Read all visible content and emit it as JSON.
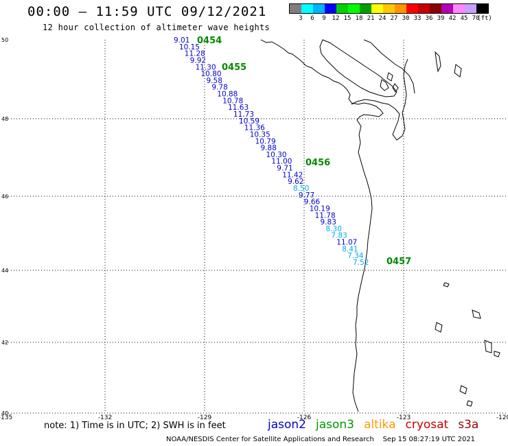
{
  "header": {
    "title": "00:00 – 11:59 UTC 09/12/2021",
    "subtitle": "12 hour collection of altimeter wave heights"
  },
  "legend": {
    "colors": [
      "#7f7f7f",
      "#00ffff",
      "#00b4ff",
      "#0000ff",
      "#00d200",
      "#00ff00",
      "#00a000",
      "#ffff00",
      "#ffc800",
      "#ff9600",
      "#ff0000",
      "#c80000",
      "#8b0000",
      "#b400b4",
      "#ff88ff",
      "#c8a0ff",
      "#000000"
    ],
    "labels": [
      "3",
      "6",
      "9",
      "12",
      "15",
      "18",
      "21",
      "24",
      "27",
      "30",
      "33",
      "36",
      "39",
      "42",
      "45",
      "70",
      "(ft)"
    ]
  },
  "axes": {
    "lon_ticks": [
      "-135",
      "-132",
      "-129",
      "-126",
      "-123",
      "-120"
    ],
    "lat_ticks": [
      "50",
      "48",
      "46",
      "44",
      "42",
      "40"
    ]
  },
  "time_labels": [
    "0454",
    "0455",
    "0456",
    "0457"
  ],
  "wave_heights": [
    {
      "v": "9.01",
      "c": "#0000cc"
    },
    {
      "v": "10.15",
      "c": "#0000cc"
    },
    {
      "v": "11.28",
      "c": "#0000cc"
    },
    {
      "v": "9.92",
      "c": "#0000cc"
    },
    {
      "v": "11.30",
      "c": "#0000cc"
    },
    {
      "v": "10.80",
      "c": "#0000cc"
    },
    {
      "v": "9.58",
      "c": "#0000cc"
    },
    {
      "v": "9.78",
      "c": "#0000cc"
    },
    {
      "v": "10.88",
      "c": "#0000cc"
    },
    {
      "v": "10.78",
      "c": "#0000cc"
    },
    {
      "v": "11.63",
      "c": "#0000cc"
    },
    {
      "v": "11.73",
      "c": "#0000cc"
    },
    {
      "v": "10.59",
      "c": "#0000cc"
    },
    {
      "v": "11.36",
      "c": "#0000cc"
    },
    {
      "v": "10.35",
      "c": "#0000cc"
    },
    {
      "v": "10.79",
      "c": "#0000cc"
    },
    {
      "v": "9.88",
      "c": "#0000cc"
    },
    {
      "v": "10.30",
      "c": "#0000cc"
    },
    {
      "v": "11.00",
      "c": "#0000cc"
    },
    {
      "v": "9.71",
      "c": "#0000cc"
    },
    {
      "v": "11.42",
      "c": "#0000cc"
    },
    {
      "v": "9.62",
      "c": "#0000cc"
    },
    {
      "v": "8.50",
      "c": "#00aaee"
    },
    {
      "v": "9.77",
      "c": "#0000cc"
    },
    {
      "v": "9.66",
      "c": "#0000cc"
    },
    {
      "v": "10.19",
      "c": "#0000cc"
    },
    {
      "v": "11.78",
      "c": "#0000cc"
    },
    {
      "v": "9.83",
      "c": "#0000cc"
    },
    {
      "v": "8.30",
      "c": "#00aaee"
    },
    {
      "v": "7.83",
      "c": "#00aaee"
    },
    {
      "v": "11.07",
      "c": "#0000cc"
    },
    {
      "v": "8.41",
      "c": "#00aaee"
    },
    {
      "v": "7.34",
      "c": "#00aaee"
    },
    {
      "v": "7.52",
      "c": "#00aaee"
    }
  ],
  "footer": {
    "note": "note: 1) Time is in UTC; 2) SWH is in feet",
    "missions": [
      {
        "name": "jason2",
        "color": "#0000cc"
      },
      {
        "name": "jason3",
        "color": "#009900"
      },
      {
        "name": "altika",
        "color": "#ff9900"
      },
      {
        "name": "cryosat",
        "color": "#cc0000"
      },
      {
        "name": "s3a",
        "color": "#990000"
      }
    ],
    "credit": "NOAA/NESDIS Center for Satellite Applications and Research    Sep 15 08:27:19 UTC 2021"
  }
}
